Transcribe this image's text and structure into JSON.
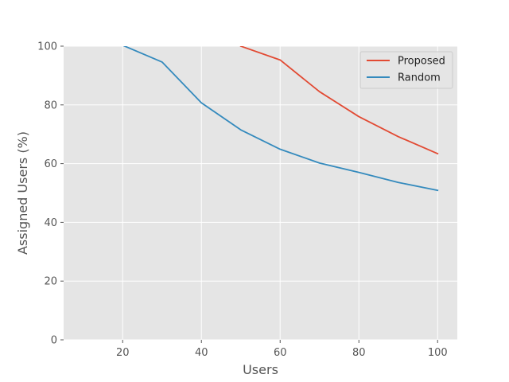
{
  "chart_data": {
    "type": "line",
    "title": "",
    "xlabel": "Users",
    "ylabel": "Assigned Users (%)",
    "xlim": [
      5,
      105
    ],
    "ylim": [
      0,
      100
    ],
    "x_ticks": [
      20,
      40,
      60,
      80,
      100
    ],
    "y_ticks": [
      0,
      20,
      40,
      60,
      80,
      100
    ],
    "grid": true,
    "background": "#e5e5e5",
    "legend_position": "top-right",
    "series": [
      {
        "name": "Proposed",
        "color": "#e24a33",
        "x": [
          50,
          60,
          70,
          80,
          90,
          100
        ],
        "y": [
          100,
          95.3,
          84.5,
          76.0,
          69.2,
          63.4
        ]
      },
      {
        "name": "Random",
        "color": "#348abd",
        "x": [
          20,
          30,
          40,
          50,
          60,
          70,
          80,
          90,
          100
        ],
        "y": [
          100.3,
          94.6,
          80.7,
          71.5,
          64.9,
          60.2,
          57.0,
          53.6,
          50.9
        ]
      }
    ]
  }
}
